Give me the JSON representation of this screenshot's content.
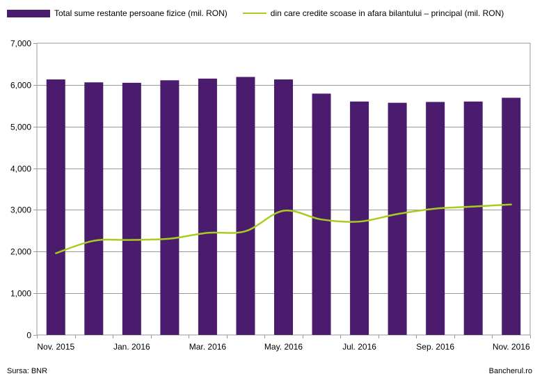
{
  "chart_data": {
    "type": "bar",
    "categories": [
      "Nov. 2015",
      "Dec. 2015",
      "Jan. 2016",
      "Feb. 2016",
      "Mar. 2016",
      "Apr. 2016",
      "May. 2016",
      "Jun. 2016",
      "Jul. 2016",
      "Aug. 2016",
      "Sep. 2016",
      "Oct. 2016",
      "Nov. 2016"
    ],
    "x_tick_labels": [
      "Nov. 2015",
      "Jan. 2016",
      "Mar. 2016",
      "May. 2016",
      "Jul. 2016",
      "Sep. 2016",
      "Nov. 2016"
    ],
    "y_tick_labels": [
      "0",
      "1,000",
      "2,000",
      "3,000",
      "4,000",
      "5,000",
      "6,000",
      "7,000"
    ],
    "ylim": [
      0,
      7000
    ],
    "grid": true,
    "legend_position": "top",
    "series": [
      {
        "name": "Total sume restante persoane fizice (mil. RON)",
        "type": "bar",
        "color": "#4b1c6e",
        "values": [
          6130,
          6060,
          6050,
          6110,
          6150,
          6190,
          6130,
          5790,
          5600,
          5570,
          5590,
          5600,
          5690
        ]
      },
      {
        "name": "din care credite scoase in afara bilantului – principal (mil. RON)",
        "type": "line",
        "color": "#a8cd1e",
        "values": [
          1960,
          2260,
          2280,
          2310,
          2450,
          2490,
          2980,
          2770,
          2720,
          2900,
          3030,
          3080,
          3130
        ]
      }
    ]
  },
  "footer": {
    "source": "Sursa: BNR",
    "brand": "Bancherul.ro"
  }
}
